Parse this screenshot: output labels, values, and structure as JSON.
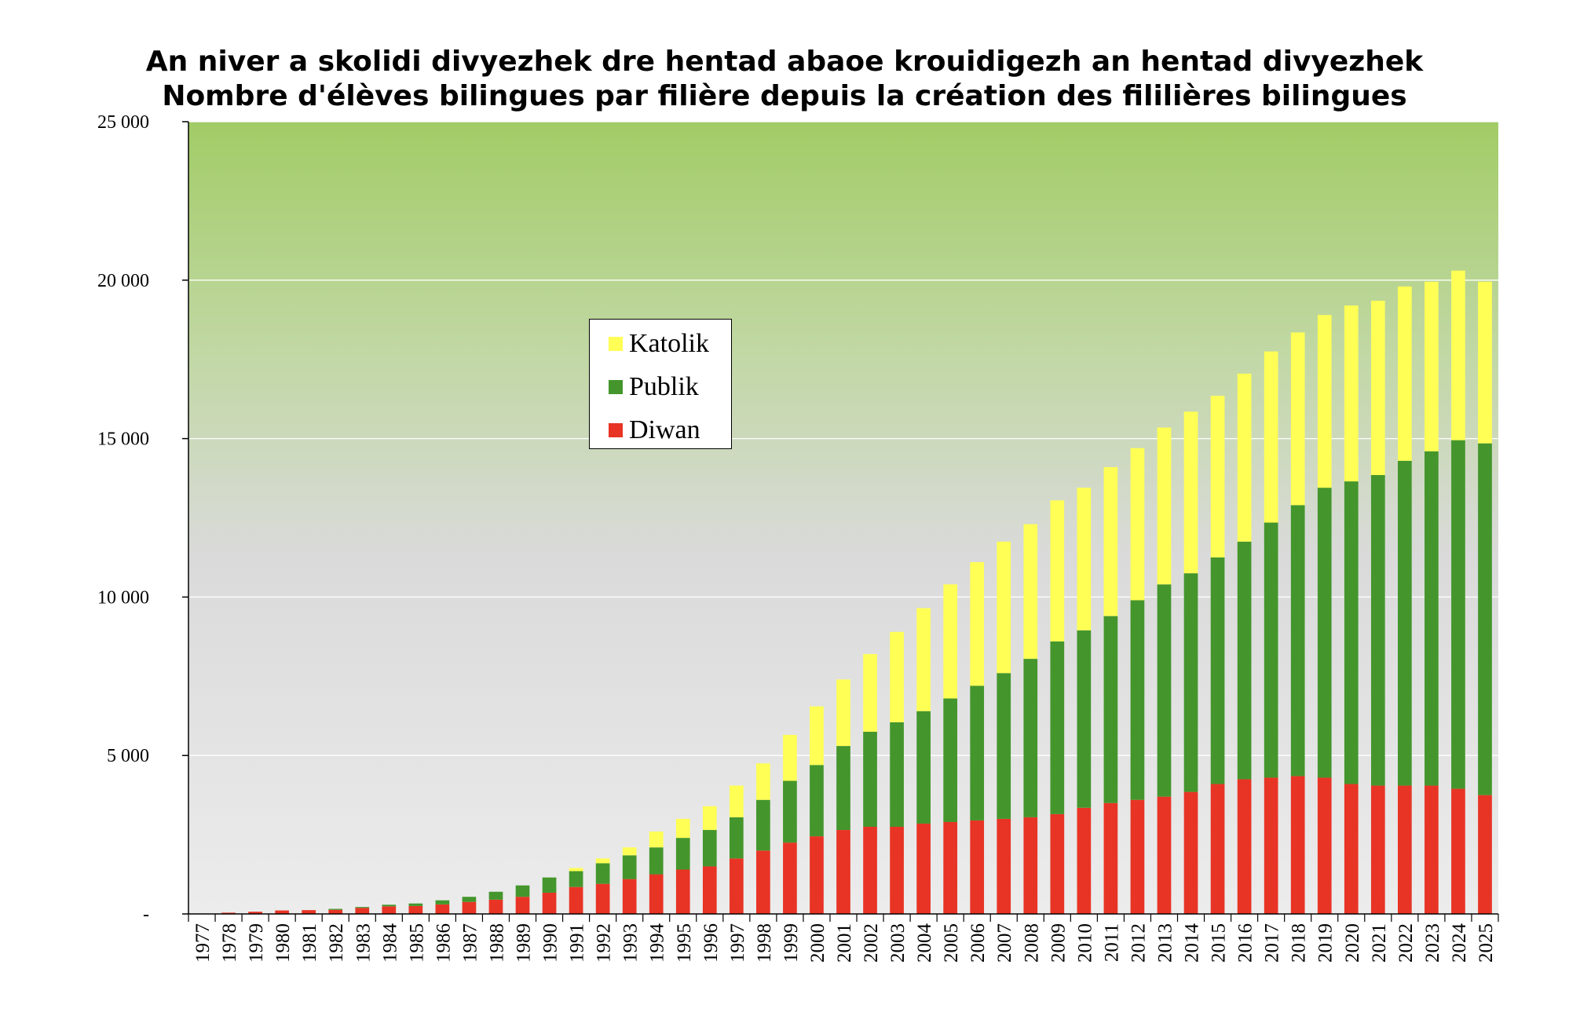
{
  "chart_data": {
    "type": "bar",
    "stacked": true,
    "title": [
      "An niver a skolidi divyezhek dre hentad abaoe krouidigezh an hentad divyezhek",
      "Nombre d'élèves bilingues par filière depuis la création des fililières bilingues"
    ],
    "xlabel": "",
    "ylabel": "",
    "ylim": [
      0,
      25000
    ],
    "yticks": [
      0,
      5000,
      10000,
      15000,
      20000,
      25000
    ],
    "ytick_labels": [
      "-",
      "5 000",
      "10 000",
      "15 000",
      "20 000",
      "25 000"
    ],
    "grid": true,
    "legend_position": "center-left",
    "categories": [
      "1977",
      "1978",
      "1979",
      "1980",
      "1981",
      "1982",
      "1983",
      "1984",
      "1985",
      "1986",
      "1987",
      "1988",
      "1989",
      "1990",
      "1991",
      "1992",
      "1993",
      "1994",
      "1995",
      "1996",
      "1997",
      "1998",
      "1999",
      "2000",
      "2001",
      "2002",
      "2003",
      "2004",
      "2005",
      "2006",
      "2007",
      "2008",
      "2009",
      "2010",
      "2011",
      "2012",
      "2013",
      "2014",
      "2015",
      "2016",
      "2017",
      "2018",
      "2019",
      "2020",
      "2021",
      "2022",
      "2023",
      "2024",
      "2025"
    ],
    "series": [
      {
        "name": "Diwan",
        "color": "#e83425",
        "values": [
          0,
          40,
          70,
          110,
          120,
          130,
          190,
          240,
          250,
          300,
          380,
          450,
          540,
          670,
          850,
          950,
          1100,
          1250,
          1400,
          1500,
          1750,
          2000,
          2250,
          2450,
          2650,
          2750,
          2750,
          2850,
          2900,
          2950,
          3000,
          3050,
          3150,
          3350,
          3500,
          3600,
          3700,
          3850,
          4100,
          4250,
          4300,
          4350,
          4300,
          4100,
          4050,
          4050,
          4050,
          3950,
          3750
        ]
      },
      {
        "name": "Publik",
        "color": "#44962c",
        "values": [
          0,
          0,
          0,
          0,
          0,
          30,
          30,
          50,
          80,
          130,
          160,
          250,
          360,
          480,
          500,
          650,
          750,
          850,
          1000,
          1150,
          1300,
          1600,
          1950,
          2250,
          2650,
          3000,
          3300,
          3550,
          3900,
          4250,
          4600,
          5000,
          5450,
          5600,
          5900,
          6300,
          6700,
          6900,
          7150,
          7500,
          8050,
          8550,
          9150,
          9550,
          9800,
          10250,
          10550,
          11000,
          11100
        ]
      },
      {
        "name": "Katolik",
        "color": "#ffff55",
        "values": [
          0,
          0,
          0,
          0,
          0,
          0,
          0,
          0,
          0,
          0,
          0,
          0,
          0,
          0,
          100,
          150,
          250,
          500,
          600,
          750,
          1000,
          1150,
          1450,
          1850,
          2100,
          2450,
          2850,
          3250,
          3600,
          3900,
          4150,
          4250,
          4450,
          4500,
          4700,
          4800,
          4950,
          5100,
          5100,
          5300,
          5400,
          5450,
          5450,
          5550,
          5500,
          5500,
          5350,
          5350,
          5100
        ]
      }
    ]
  }
}
